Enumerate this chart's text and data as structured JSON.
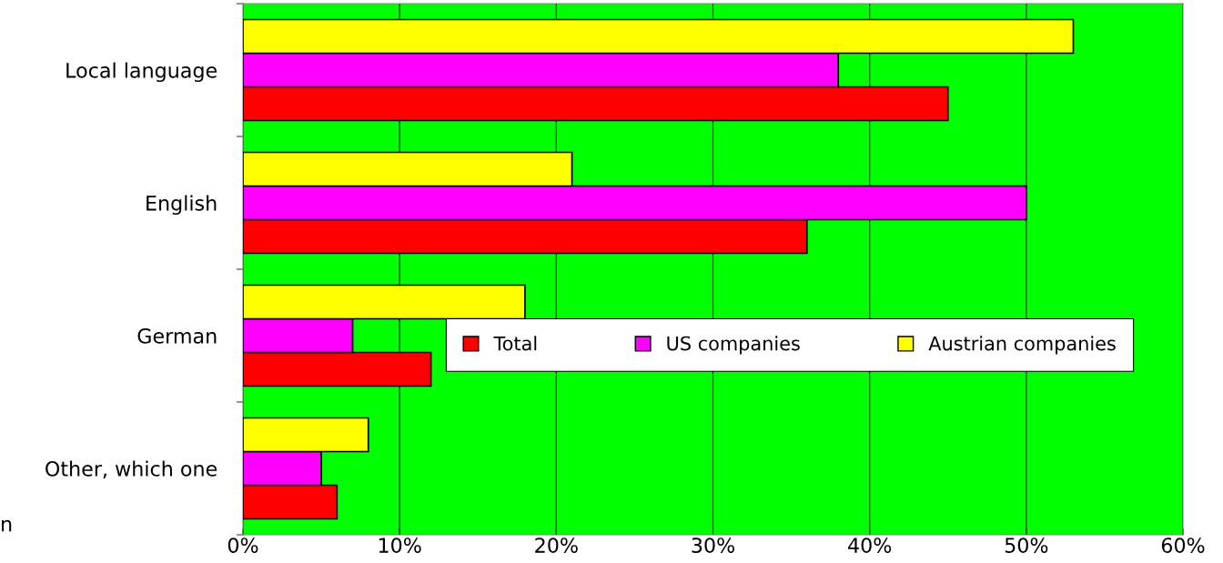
{
  "chart_data": {
    "type": "bar",
    "orientation": "horizontal",
    "categories": [
      "Local language",
      "English",
      "German",
      "Other, which one"
    ],
    "series": [
      {
        "name": "Total",
        "color": "#ff0000",
        "values": [
          45,
          36,
          12,
          6
        ]
      },
      {
        "name": "US companies",
        "color": "#ff00ff",
        "values": [
          38,
          50,
          7,
          5
        ]
      },
      {
        "name": "Austrian companies",
        "color": "#ffff00",
        "values": [
          53,
          21,
          18,
          8
        ]
      }
    ],
    "xlim": [
      0,
      60
    ],
    "xticks": [
      {
        "value": 0,
        "label": "0%"
      },
      {
        "value": 10,
        "label": "10%"
      },
      {
        "value": 20,
        "label": "20%"
      },
      {
        "value": 30,
        "label": "30%"
      },
      {
        "value": 40,
        "label": "40%"
      },
      {
        "value": 50,
        "label": "50%"
      },
      {
        "value": 60,
        "label": "60%"
      }
    ],
    "grid": "x",
    "legend": "bottom right",
    "annotations": [
      "n"
    ]
  }
}
